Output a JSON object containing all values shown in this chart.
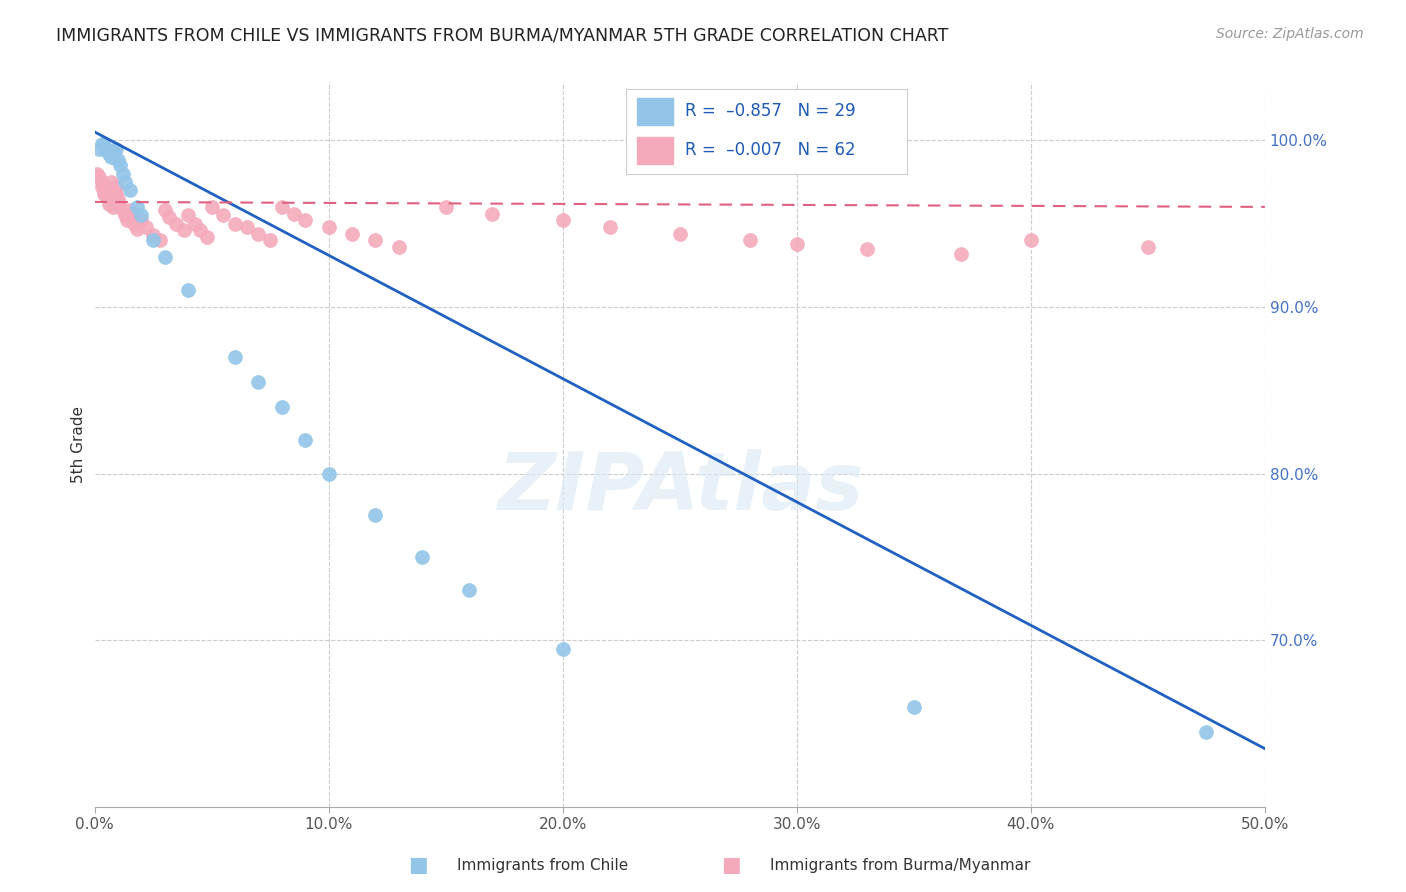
{
  "title": "IMMIGRANTS FROM CHILE VS IMMIGRANTS FROM BURMA/MYANMAR 5TH GRADE CORRELATION CHART",
  "source": "Source: ZipAtlas.com",
  "ylabel": "5th Grade",
  "watermark": "ZIPAtlas",
  "xlim": [
    0.0,
    0.5
  ],
  "ylim": [
    0.6,
    1.035
  ],
  "xticklabels": [
    "0.0%",
    "10.0%",
    "20.0%",
    "30.0%",
    "40.0%",
    "50.0%"
  ],
  "xtick_vals": [
    0.0,
    0.1,
    0.2,
    0.3,
    0.4,
    0.5
  ],
  "ytick_vals": [
    0.7,
    0.8,
    0.9,
    1.0
  ],
  "yticklabels_right": [
    "70.0%",
    "80.0%",
    "90.0%",
    "100.0%"
  ],
  "chile_color": "#92C5E8",
  "burma_color": "#F4AABB",
  "chile_line_color": "#2060C0",
  "burma_line_color": "#E06080",
  "legend_label_chile": "R =  –0.857   N = 29",
  "legend_label_burma": "R =  –0.007   N = 62",
  "legend_label_chile_color": "#1F5BB5",
  "legend_label_burma_color": "#1F5BB5",
  "bottom_legend_chile": "Immigrants from Chile",
  "bottom_legend_burma": "Immigrants from Burma/Myanmar",
  "chile_line_x": [
    0.0,
    0.5
  ],
  "chile_line_y": [
    1.005,
    0.635
  ],
  "burma_line_x": [
    0.0,
    0.5
  ],
  "burma_line_y": [
    0.963,
    0.96
  ],
  "grid_color": "#CCCCCC",
  "chile_scatter_x": [
    0.002,
    0.003,
    0.004,
    0.005,
    0.006,
    0.007,
    0.008,
    0.009,
    0.01,
    0.011,
    0.012,
    0.013,
    0.015,
    0.018,
    0.02,
    0.025,
    0.03,
    0.04,
    0.06,
    0.07,
    0.08,
    0.09,
    0.1,
    0.12,
    0.14,
    0.16,
    0.2,
    0.35,
    0.475
  ],
  "chile_scatter_y": [
    0.995,
    0.998,
    0.997,
    0.994,
    0.992,
    0.99,
    0.993,
    0.995,
    0.988,
    0.985,
    0.98,
    0.975,
    0.97,
    0.96,
    0.955,
    0.94,
    0.93,
    0.91,
    0.87,
    0.855,
    0.84,
    0.82,
    0.8,
    0.775,
    0.75,
    0.73,
    0.695,
    0.66,
    0.645
  ],
  "burma_scatter_x": [
    0.001,
    0.002,
    0.003,
    0.003,
    0.004,
    0.004,
    0.005,
    0.005,
    0.006,
    0.006,
    0.007,
    0.007,
    0.008,
    0.008,
    0.009,
    0.009,
    0.01,
    0.01,
    0.011,
    0.012,
    0.013,
    0.014,
    0.015,
    0.016,
    0.017,
    0.018,
    0.02,
    0.022,
    0.025,
    0.028,
    0.03,
    0.032,
    0.035,
    0.038,
    0.04,
    0.043,
    0.045,
    0.048,
    0.05,
    0.055,
    0.06,
    0.065,
    0.07,
    0.075,
    0.08,
    0.085,
    0.09,
    0.1,
    0.11,
    0.12,
    0.13,
    0.15,
    0.17,
    0.2,
    0.22,
    0.25,
    0.28,
    0.3,
    0.33,
    0.37,
    0.4,
    0.45
  ],
  "burma_scatter_y": [
    0.98,
    0.978,
    0.975,
    0.972,
    0.97,
    0.968,
    0.972,
    0.968,
    0.966,
    0.962,
    0.975,
    0.97,
    0.965,
    0.96,
    0.972,
    0.968,
    0.965,
    0.963,
    0.96,
    0.958,
    0.955,
    0.952,
    0.958,
    0.955,
    0.95,
    0.947,
    0.952,
    0.948,
    0.943,
    0.94,
    0.958,
    0.954,
    0.95,
    0.946,
    0.955,
    0.95,
    0.946,
    0.942,
    0.96,
    0.955,
    0.95,
    0.948,
    0.944,
    0.94,
    0.96,
    0.956,
    0.952,
    0.948,
    0.944,
    0.94,
    0.936,
    0.96,
    0.956,
    0.952,
    0.948,
    0.944,
    0.94,
    0.938,
    0.935,
    0.932,
    0.94,
    0.936
  ]
}
